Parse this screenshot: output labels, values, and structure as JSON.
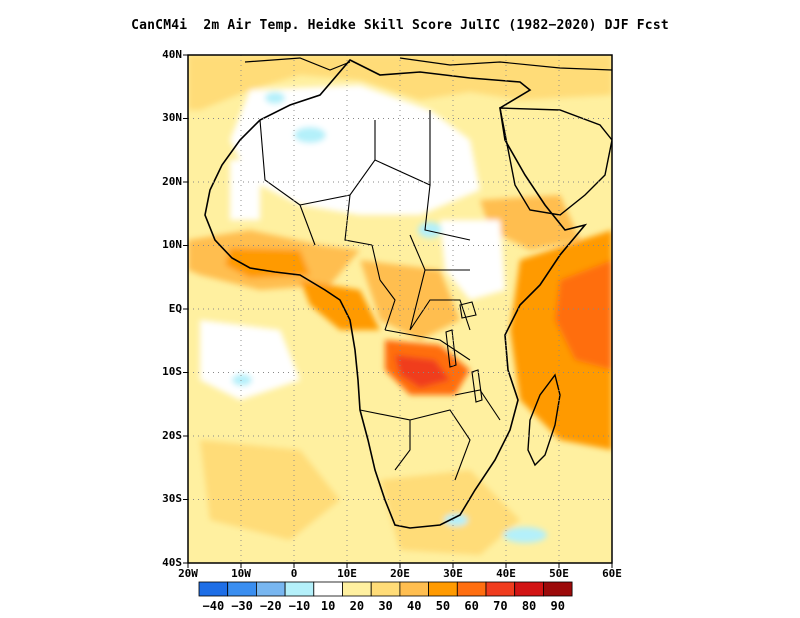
{
  "title": "CanCM4i  2m Air Temp. Heidke Skill Score JulIC (1982−2020) DJF Fcst",
  "map": {
    "lat_labels": [
      "40N",
      "30N",
      "20N",
      "10N",
      "EQ",
      "10S",
      "20S",
      "30S",
      "40S"
    ],
    "lon_labels": [
      "20W",
      "10W",
      "0",
      "10E",
      "20E",
      "30E",
      "40E",
      "50E",
      "60E"
    ],
    "extent": {
      "lon_min": -20,
      "lon_max": 60,
      "lat_min": -40,
      "lat_max": 40
    },
    "gridlines": "dotted"
  },
  "legend": {
    "labels": [
      "−40",
      "−30",
      "−20",
      "−10",
      "10",
      "20",
      "30",
      "40",
      "50",
      "60",
      "70",
      "80",
      "90"
    ],
    "colors": [
      "#1e6ee6",
      "#3a8ef0",
      "#78b6f0",
      "#b4f0fa",
      "#ffffff",
      "#fff0a0",
      "#ffdc78",
      "#ffbe50",
      "#ff9a00",
      "#ff6e10",
      "#f03c1e",
      "#d21414",
      "#9c0a0a"
    ]
  }
}
